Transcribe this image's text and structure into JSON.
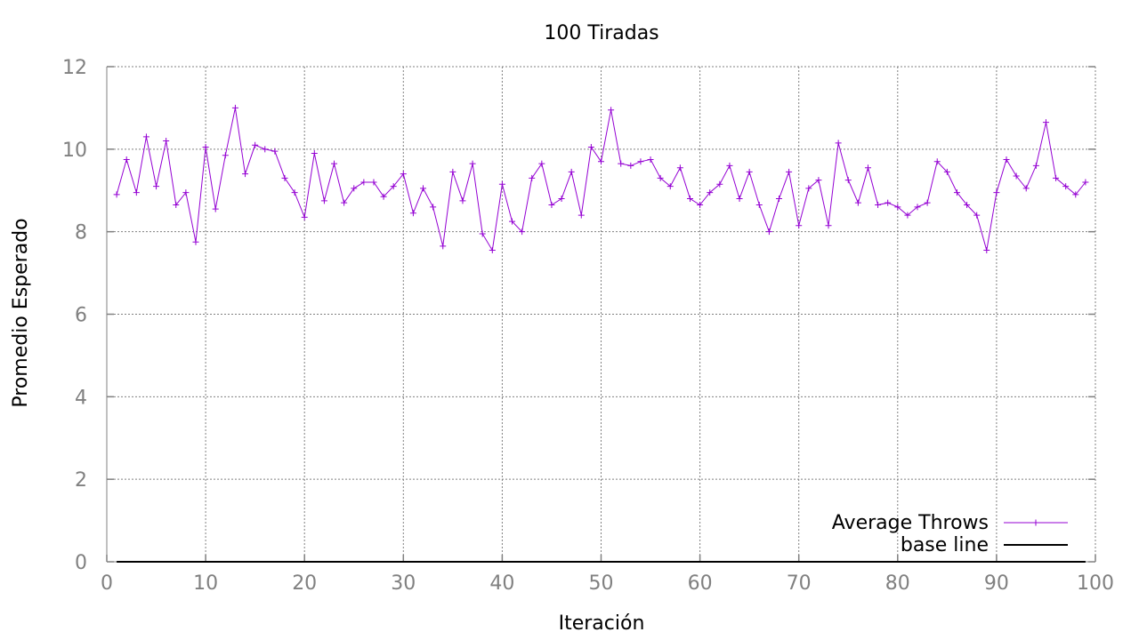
{
  "chart_data": {
    "type": "line",
    "title": "100 Tiradas",
    "xlabel": "Iteración",
    "ylabel": "Promedio Esperado",
    "xlim": [
      0,
      100
    ],
    "ylim": [
      0,
      12
    ],
    "xticks": [
      0,
      10,
      20,
      30,
      40,
      50,
      60,
      70,
      80,
      90,
      100
    ],
    "yticks": [
      0,
      2,
      4,
      6,
      8,
      10,
      12
    ],
    "grid": true,
    "legend_position": "bottom-right",
    "series": [
      {
        "name": "Average Throws",
        "color": "#9400d3",
        "marker": "plus",
        "x": [
          1,
          2,
          3,
          4,
          5,
          6,
          7,
          8,
          9,
          10,
          11,
          12,
          13,
          14,
          15,
          16,
          17,
          18,
          19,
          20,
          21,
          22,
          23,
          24,
          25,
          26,
          27,
          28,
          29,
          30,
          31,
          32,
          33,
          34,
          35,
          36,
          37,
          38,
          39,
          40,
          41,
          42,
          43,
          44,
          45,
          46,
          47,
          48,
          49,
          50,
          51,
          52,
          53,
          54,
          55,
          56,
          57,
          58,
          59,
          60,
          61,
          62,
          63,
          64,
          65,
          66,
          67,
          68,
          69,
          70,
          71,
          72,
          73,
          74,
          75,
          76,
          77,
          78,
          79,
          80,
          81,
          82,
          83,
          84,
          85,
          86,
          87,
          88,
          89,
          90,
          91,
          92,
          93,
          94,
          95,
          96,
          97,
          98,
          99
        ],
        "y": [
          8.9,
          9.75,
          8.95,
          10.3,
          9.1,
          10.2,
          8.65,
          8.95,
          7.75,
          10.05,
          8.55,
          9.85,
          11.0,
          9.4,
          10.1,
          10.0,
          9.95,
          9.3,
          8.95,
          8.35,
          9.9,
          8.75,
          9.65,
          8.7,
          9.05,
          9.2,
          9.2,
          8.85,
          9.1,
          9.4,
          8.45,
          9.05,
          8.6,
          7.65,
          9.45,
          8.75,
          9.65,
          7.95,
          7.55,
          9.15,
          8.25,
          8.0,
          9.3,
          9.65,
          8.65,
          8.8,
          9.45,
          8.4,
          10.05,
          9.7,
          10.95,
          9.65,
          9.6,
          9.7,
          9.75,
          9.3,
          9.1,
          9.55,
          8.8,
          8.65,
          8.95,
          9.15,
          9.6,
          8.8,
          9.45,
          8.65,
          8.0,
          8.8,
          9.45,
          8.15,
          9.05,
          9.25,
          8.15,
          10.15,
          9.25,
          8.7,
          9.55,
          8.65,
          8.7,
          8.6,
          8.4,
          8.6,
          8.7,
          9.7,
          9.45,
          8.95,
          8.65,
          8.4,
          7.55,
          8.95,
          9.75,
          9.35,
          9.05,
          9.6,
          10.65,
          9.3,
          9.1,
          8.9,
          9.2
        ]
      },
      {
        "name": "base line",
        "color": "#000000",
        "marker": "none",
        "x": [
          1,
          99
        ],
        "y": [
          0,
          0
        ]
      }
    ]
  }
}
